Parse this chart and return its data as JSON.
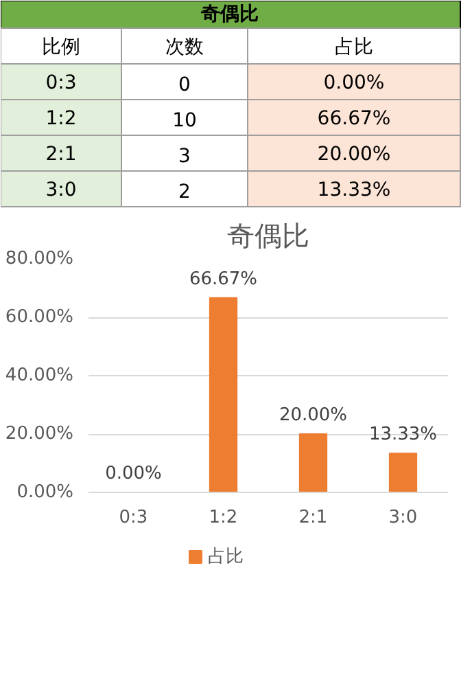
{
  "chart_data": [
    {
      "type": "other",
      "title": "奇偶比",
      "annotations": [
        "比例",
        "次数",
        "占比",
        "0:3",
        "0",
        "0.00%",
        "1:2",
        "10",
        "66.67%",
        "2:1",
        "3",
        "20.00%",
        "3:0",
        "2",
        "13.33%"
      ]
    },
    {
      "type": "bar",
      "title": "奇偶比",
      "categories": [
        "0:3",
        "1:2",
        "2:1",
        "3:0"
      ],
      "series": [
        {
          "name": "占比",
          "color": "#ed7d31",
          "values": [
            0,
            66.67,
            20,
            13.33
          ],
          "value_labels": [
            "0.00%",
            "66.67%",
            "20.00%",
            "13.33%"
          ]
        }
      ],
      "ylim": [
        0,
        80
      ],
      "yticks": [
        {
          "value": 0,
          "label": "0.00%"
        },
        {
          "value": 20,
          "label": "20.00%"
        },
        {
          "value": 40,
          "label": "40.00%"
        },
        {
          "value": 60,
          "label": "60.00%"
        },
        {
          "value": 80,
          "label": "80.00%"
        }
      ],
      "grid": "y",
      "legend": "bottom"
    }
  ]
}
